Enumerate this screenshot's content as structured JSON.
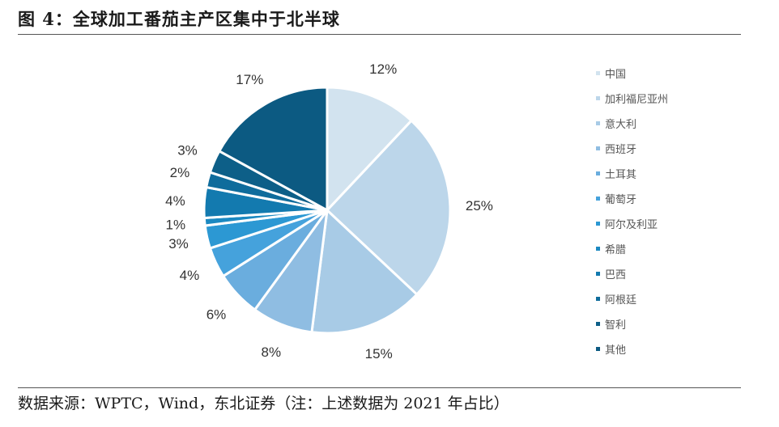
{
  "header": {
    "title": "图 4：全球加工番茄主产区集中于北半球"
  },
  "footer": {
    "source": "数据来源：WPTC，Wind，东北证券（注：上述数据为 2021 年占比）"
  },
  "chart_data": {
    "type": "pie",
    "slices": [
      {
        "name": "中国",
        "value": 12,
        "label": "12%",
        "color": "#d2e3ef"
      },
      {
        "name": "加利福尼亚州",
        "value": 25,
        "label": "25%",
        "color": "#bcd6ea"
      },
      {
        "name": "意大利",
        "value": 15,
        "label": "15%",
        "color": "#a8cbe6"
      },
      {
        "name": "西班牙",
        "value": 8,
        "label": "8%",
        "color": "#8fbde2"
      },
      {
        "name": "土耳其",
        "value": 6,
        "label": "6%",
        "color": "#6aadde"
      },
      {
        "name": "葡萄牙",
        "value": 4,
        "label": "4%",
        "color": "#45a2dc"
      },
      {
        "name": "阿尔及利亚",
        "value": 3,
        "label": "3%",
        "color": "#2c98d3"
      },
      {
        "name": "希腊",
        "value": 1,
        "label": "1%",
        "color": "#1c89c1"
      },
      {
        "name": "巴西",
        "value": 4,
        "label": "4%",
        "color": "#137aaf"
      },
      {
        "name": "阿根廷",
        "value": 2,
        "label": "2%",
        "color": "#0f6c9c"
      },
      {
        "name": "智利",
        "value": 3,
        "label": "3%",
        "color": "#0d5f88"
      },
      {
        "name": "其他",
        "value": 17,
        "label": "17%",
        "color": "#0c5a82"
      }
    ],
    "start_angle_deg": 0,
    "direction": "clockwise",
    "legend_position": "right"
  }
}
